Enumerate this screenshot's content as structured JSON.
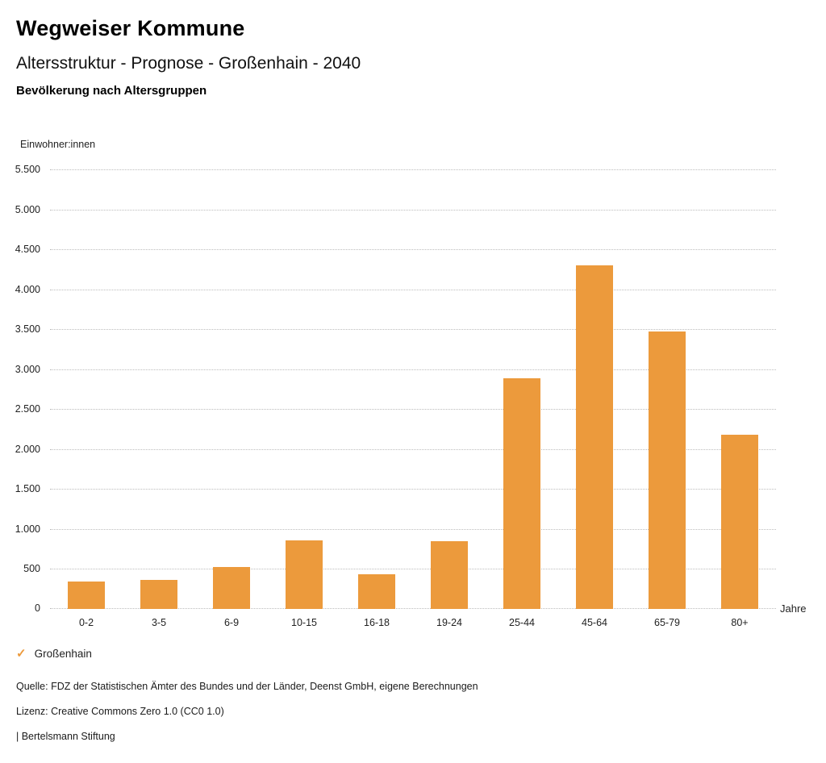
{
  "header": {
    "title": "Wegweiser Kommune",
    "subtitle": "Altersstruktur - Prognose - Großenhain - 2040",
    "chart_heading": "Bevölkerung nach Altersgruppen"
  },
  "chart_data": {
    "type": "bar",
    "title": "Bevölkerung nach Altersgruppen",
    "categories": [
      "0-2",
      "3-5",
      "6-9",
      "10-15",
      "16-18",
      "19-24",
      "25-44",
      "45-64",
      "65-79",
      "80+"
    ],
    "values": [
      340,
      360,
      520,
      860,
      435,
      850,
      2890,
      4300,
      3470,
      2180
    ],
    "series_name": "Großenhain",
    "xlabel": "Jahre",
    "ylabel": "Einwohner:innen",
    "ylim": [
      0,
      5500
    ],
    "ytick_step": 500,
    "ytick_labels": [
      "0",
      "500",
      "1.000",
      "1.500",
      "2.000",
      "2.500",
      "3.000",
      "3.500",
      "4.000",
      "4.500",
      "5.000",
      "5.500"
    ],
    "grid": "horizontal-dotted",
    "legend_position": "bottom-left",
    "bar_color": "#EC9A3C"
  },
  "legend": {
    "check_icon": "✓",
    "label": "Großenhain"
  },
  "footer": {
    "source": "Quelle: FDZ der Statistischen Ämter des Bundes und der Länder, Deenst GmbH, eigene Berechnungen",
    "license": "Lizenz: Creative Commons Zero 1.0 (CC0 1.0)",
    "publisher": "| Bertelsmann Stiftung"
  },
  "colors": {
    "accent_orange": "#EC9A3C",
    "grid": "#BCBCBC",
    "text": "#1A1A1A"
  }
}
